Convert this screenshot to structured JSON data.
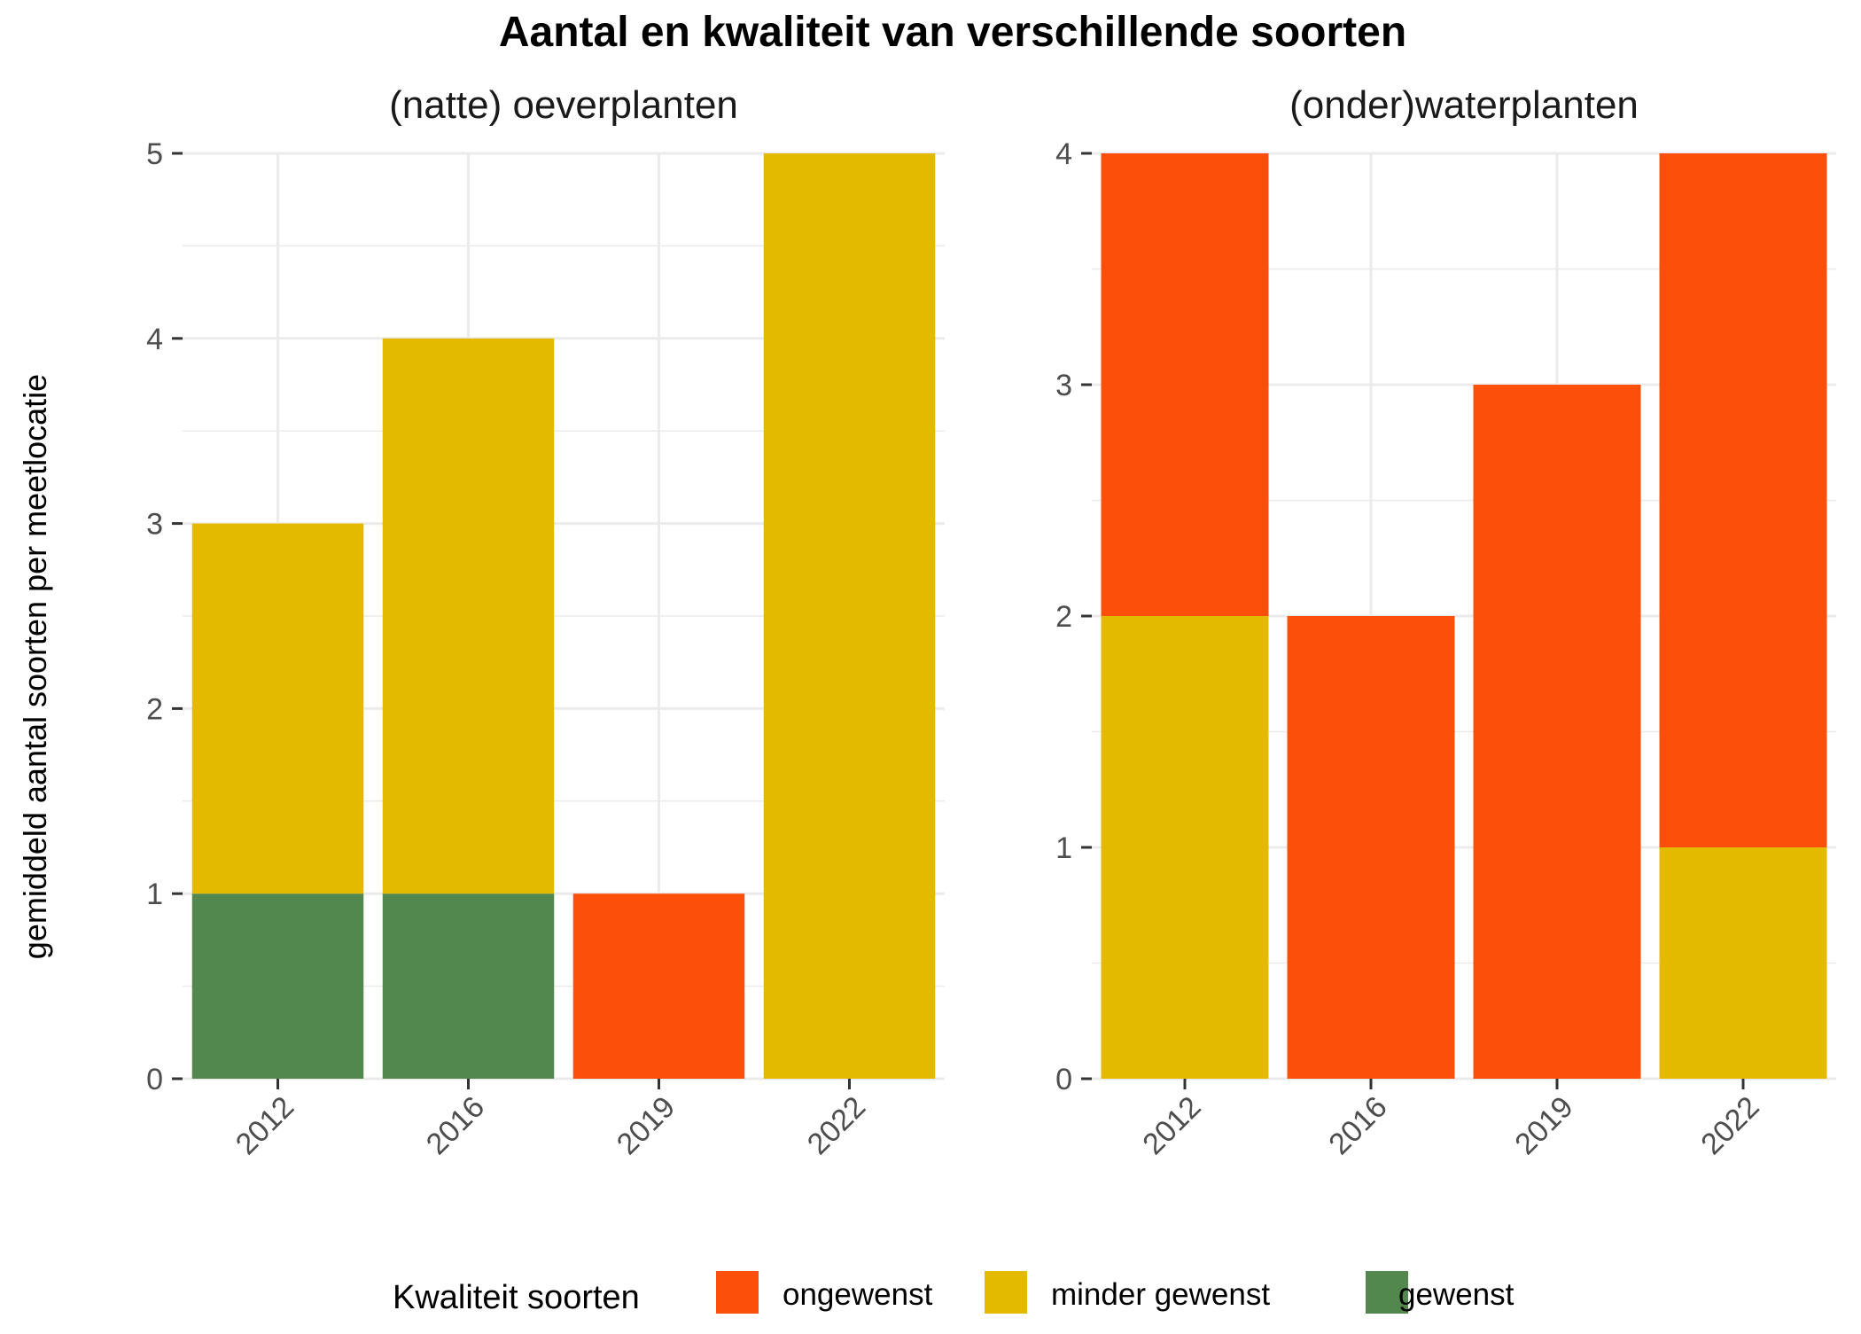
{
  "title": "Aantal en kwaliteit van verschillende soorten",
  "ylabel": "gemiddeld aantal soorten per meetlocatie",
  "legend": {
    "title": "Kwaliteit soorten",
    "position": "bottom",
    "items": [
      {
        "label": "ongewenst",
        "color": "#FC500A"
      },
      {
        "label": "minder gewenst",
        "color": "#E4BA00"
      },
      {
        "label": "gewenst",
        "color": "#52874D"
      }
    ]
  },
  "chart_data": [
    {
      "type": "bar",
      "stacked": true,
      "title": "(natte) oeverplanten",
      "categories": [
        "2012",
        "2016",
        "2019",
        "2022"
      ],
      "ylim": [
        0,
        5
      ],
      "yticks": [
        0,
        1,
        2,
        3,
        4,
        5
      ],
      "grid": true,
      "series": [
        {
          "name": "gewenst",
          "values": [
            1,
            1,
            0,
            0
          ]
        },
        {
          "name": "minder gewenst",
          "values": [
            2,
            3,
            0,
            5
          ]
        },
        {
          "name": "ongewenst",
          "values": [
            0,
            0,
            1,
            0
          ]
        }
      ]
    },
    {
      "type": "bar",
      "stacked": true,
      "title": "(onder)waterplanten",
      "categories": [
        "2012",
        "2016",
        "2019",
        "2022"
      ],
      "ylim": [
        0,
        4
      ],
      "yticks": [
        0,
        1,
        2,
        3,
        4
      ],
      "grid": true,
      "series": [
        {
          "name": "gewenst",
          "values": [
            0,
            0,
            0,
            0
          ]
        },
        {
          "name": "minder gewenst",
          "values": [
            2,
            0,
            0,
            1
          ]
        },
        {
          "name": "ongewenst",
          "values": [
            2,
            2,
            3,
            3
          ]
        }
      ]
    }
  ]
}
